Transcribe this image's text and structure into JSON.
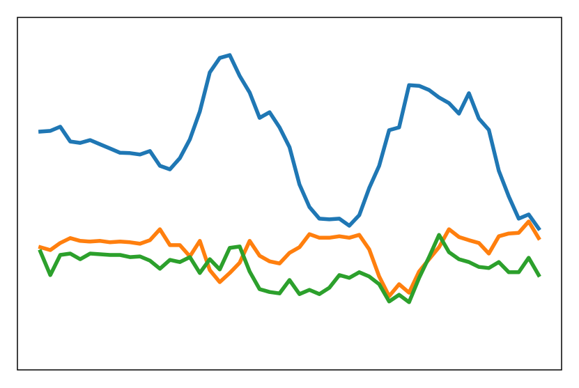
{
  "chart_data": {
    "type": "line",
    "x": [
      0,
      1,
      2,
      3,
      4,
      5,
      6,
      7,
      8,
      9,
      10,
      11,
      12,
      13,
      14,
      15,
      16,
      17,
      18,
      19,
      20,
      21,
      22,
      23,
      24,
      25,
      26,
      27,
      28,
      29,
      30,
      31,
      32,
      33,
      34,
      35,
      36,
      37,
      38,
      39,
      40,
      41,
      42,
      43,
      44,
      45,
      46,
      47,
      48,
      49,
      50
    ],
    "xlim": [
      -2.3,
      52.3
    ],
    "ylim": [
      0,
      100
    ],
    "series": [
      {
        "color": "#1f77b4",
        "values": [
          67.6,
          67.8,
          69.0,
          64.8,
          64.4,
          65.2,
          64.0,
          62.8,
          61.6,
          61.5,
          61.1,
          62.1,
          57.9,
          56.9,
          60.1,
          65.4,
          73.3,
          84.4,
          88.5,
          89.3,
          83.4,
          78.7,
          71.5,
          73.1,
          68.8,
          63.2,
          52.6,
          46.2,
          42.9,
          42.7,
          42.9,
          40.9,
          43.9,
          51.6,
          57.9,
          68.0,
          68.8,
          80.8,
          80.6,
          79.4,
          77.3,
          75.7,
          72.7,
          78.5,
          71.3,
          68.1,
          56.5,
          49.2,
          42.9,
          44.1,
          40.1
        ]
      },
      {
        "color": "#ff7f0e",
        "values": [
          34.8,
          34.0,
          36.0,
          37.4,
          36.6,
          36.4,
          36.6,
          36.2,
          36.4,
          36.2,
          35.8,
          36.8,
          39.9,
          35.4,
          35.4,
          32.2,
          36.6,
          28.3,
          24.9,
          27.5,
          30.4,
          36.6,
          32.4,
          30.8,
          30.2,
          33.2,
          34.8,
          38.5,
          37.5,
          37.5,
          37.9,
          37.5,
          38.3,
          34.2,
          26.5,
          20.9,
          24.3,
          21.9,
          27.9,
          31.4,
          34.8,
          39.9,
          37.7,
          36.8,
          36.0,
          33.0,
          37.9,
          38.7,
          38.9,
          42.1,
          37.4
        ]
      },
      {
        "color": "#2ca02c",
        "values": [
          33.6,
          26.9,
          32.6,
          33.0,
          31.4,
          33.0,
          32.8,
          32.6,
          32.6,
          32.0,
          32.2,
          31.0,
          28.7,
          31.2,
          30.6,
          32.0,
          27.5,
          31.4,
          28.5,
          34.6,
          35.0,
          27.9,
          22.9,
          22.1,
          21.7,
          25.5,
          21.5,
          22.7,
          21.5,
          23.3,
          26.9,
          26.1,
          27.7,
          26.5,
          24.3,
          19.4,
          21.3,
          19.2,
          26.1,
          32.0,
          38.3,
          33.4,
          31.4,
          30.6,
          29.2,
          28.9,
          30.6,
          27.7,
          27.7,
          31.8,
          26.9
        ]
      }
    ]
  }
}
